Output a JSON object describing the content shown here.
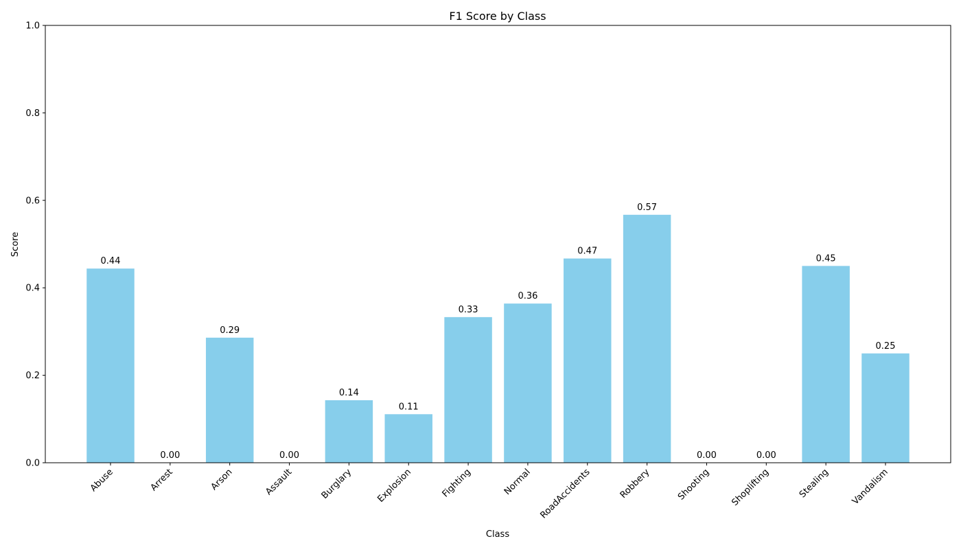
{
  "chart_data": {
    "type": "bar",
    "title": "F1 Score by Class",
    "xlabel": "Class",
    "ylabel": "Score",
    "ylim": [
      0,
      1
    ],
    "yticks": [
      0.0,
      0.2,
      0.4,
      0.6,
      0.8,
      1.0
    ],
    "ytick_labels": [
      "0.0",
      "0.2",
      "0.4",
      "0.6",
      "0.8",
      "1.0"
    ],
    "categories": [
      "Abuse",
      "Arrest",
      "Arson",
      "Assault",
      "Burglary",
      "Explosion",
      "Fighting",
      "Normal",
      "RoadAccidents",
      "Robbery",
      "Shooting",
      "Shoplifting",
      "Stealing",
      "Vandalism"
    ],
    "values": [
      0.444,
      0.0,
      0.286,
      0.0,
      0.143,
      0.111,
      0.333,
      0.364,
      0.467,
      0.567,
      0.0,
      0.0,
      0.45,
      0.25
    ],
    "value_labels": [
      "0.44",
      "0.00",
      "0.29",
      "0.00",
      "0.14",
      "0.11",
      "0.33",
      "0.36",
      "0.47",
      "0.57",
      "0.00",
      "0.00",
      "0.45",
      "0.25"
    ],
    "bar_color": "#87CEEB",
    "grid": false,
    "legend": "none"
  }
}
